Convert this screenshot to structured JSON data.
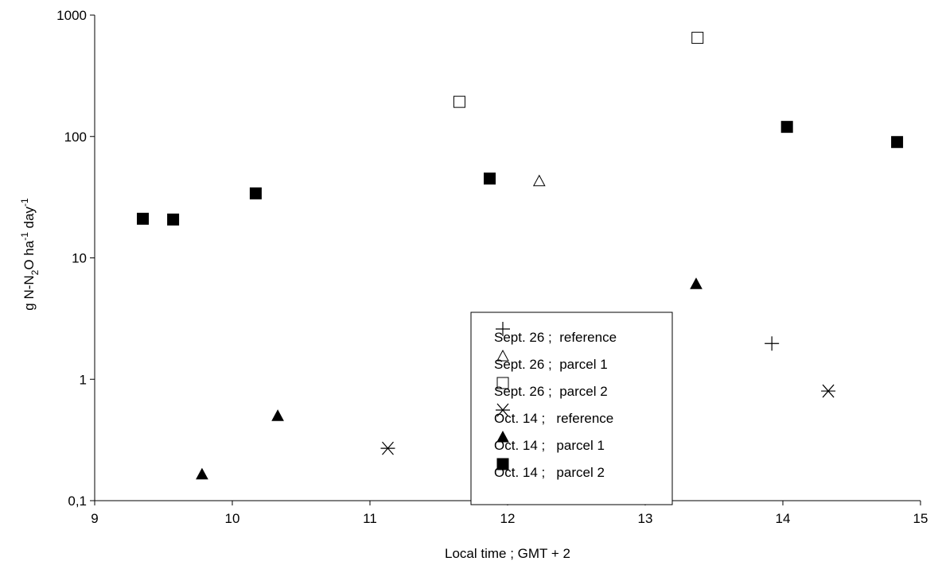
{
  "chart_data": {
    "type": "scatter",
    "title": "",
    "xlabel": "Local time ;  GMT + 2",
    "ylabel_parts": {
      "base": "g N-N",
      "sub": "2",
      "mid": "O ha",
      "sup1": "-1",
      "end": " day",
      "sup2": "-1"
    },
    "x_range": [
      9,
      15
    ],
    "y_range": [
      0.1,
      1000
    ],
    "y_scale": "log",
    "grid": false,
    "legend_position": "center-right",
    "x_ticks": [
      {
        "value": 9,
        "label": "9"
      },
      {
        "value": 10,
        "label": "10"
      },
      {
        "value": 11,
        "label": "11"
      },
      {
        "value": 12,
        "label": "12"
      },
      {
        "value": 13,
        "label": "13"
      },
      {
        "value": 14,
        "label": "14"
      },
      {
        "value": 15,
        "label": "15"
      }
    ],
    "y_ticks": [
      {
        "value": 0.1,
        "label": "0,1"
      },
      {
        "value": 1,
        "label": "1"
      },
      {
        "value": 10,
        "label": "10"
      },
      {
        "value": 100,
        "label": "100"
      },
      {
        "value": 1000,
        "label": "1000"
      }
    ],
    "series": [
      {
        "name": "Sept. 26 ;  reference",
        "marker": "plus",
        "points": [
          {
            "x": 13.92,
            "y": 1.97
          }
        ]
      },
      {
        "name": "Sept. 26 ;  parcel 1",
        "marker": "triangle-open",
        "points": [
          {
            "x": 12.23,
            "y": 43
          }
        ]
      },
      {
        "name": "Sept. 26 ;  parcel 2",
        "marker": "square-open",
        "points": [
          {
            "x": 11.65,
            "y": 193
          },
          {
            "x": 13.38,
            "y": 650
          }
        ]
      },
      {
        "name": "Oct. 14 ;   reference",
        "marker": "asterisk",
        "points": [
          {
            "x": 11.13,
            "y": 0.27
          },
          {
            "x": 14.33,
            "y": 0.8
          }
        ]
      },
      {
        "name": "Oct. 14 ;   parcel 1",
        "marker": "triangle-filled",
        "points": [
          {
            "x": 9.78,
            "y": 0.165
          },
          {
            "x": 10.33,
            "y": 0.5
          },
          {
            "x": 13.37,
            "y": 6.1
          }
        ]
      },
      {
        "name": "Oct. 14 ;   parcel 2",
        "marker": "square-filled",
        "points": [
          {
            "x": 9.35,
            "y": 21
          },
          {
            "x": 9.57,
            "y": 20.7
          },
          {
            "x": 10.17,
            "y": 34
          },
          {
            "x": 11.87,
            "y": 45
          },
          {
            "x": 14.03,
            "y": 120
          },
          {
            "x": 14.83,
            "y": 90
          }
        ]
      }
    ]
  }
}
